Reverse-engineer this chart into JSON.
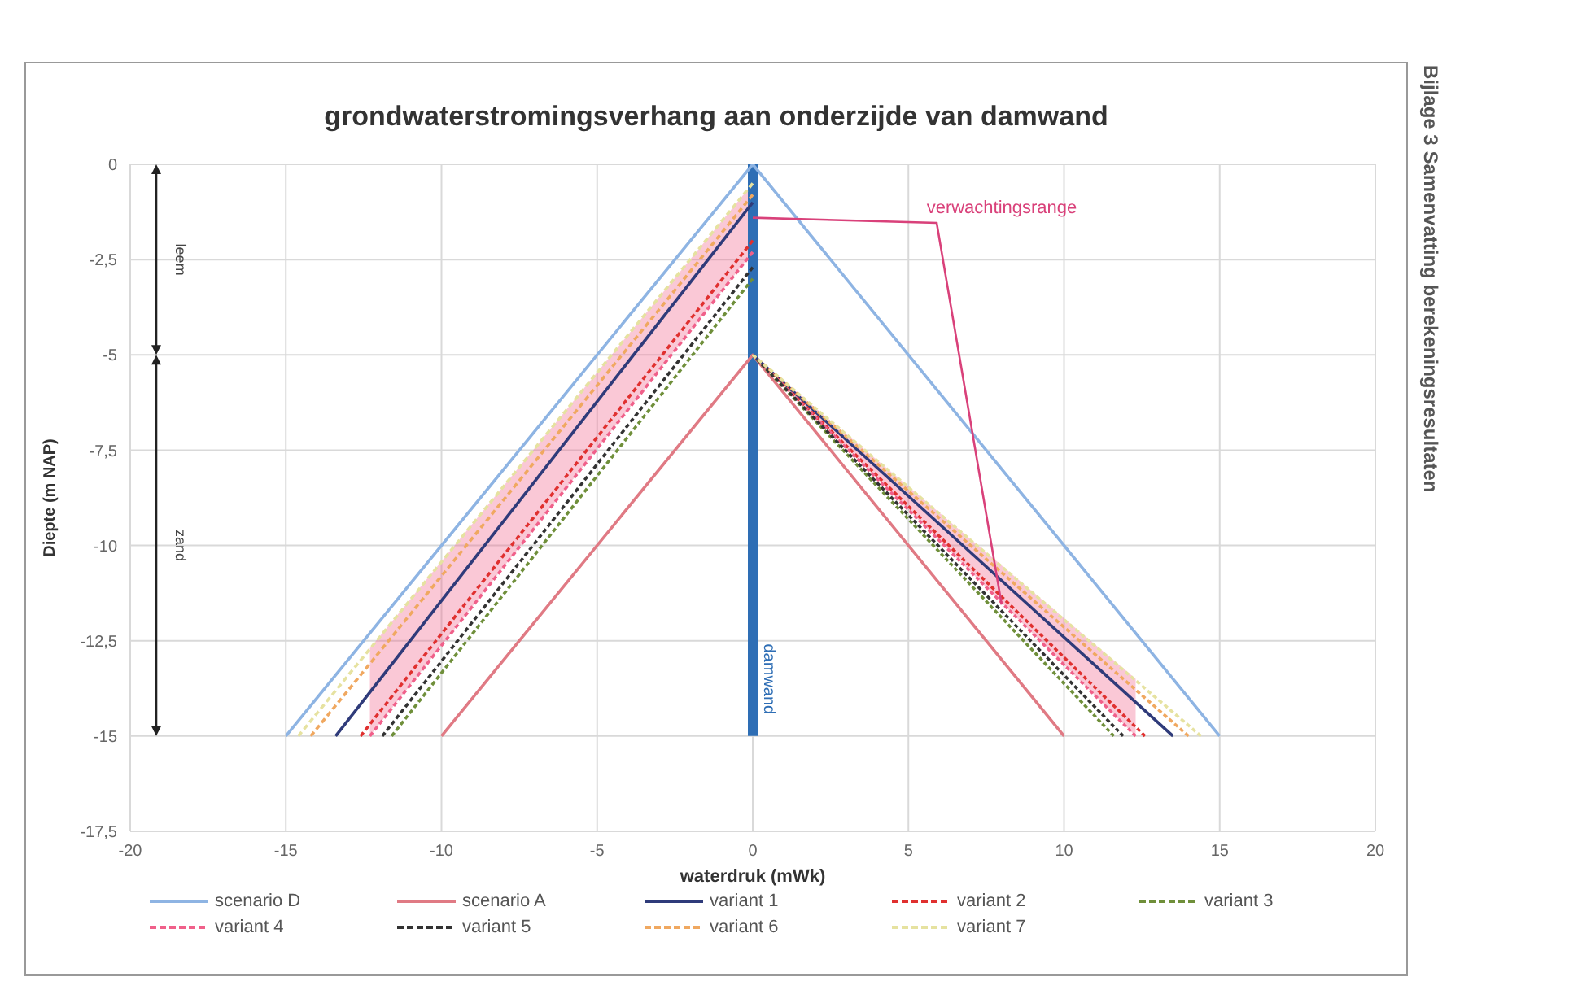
{
  "chart_data": {
    "type": "line",
    "title": "grondwaterstromingsverhang aan onderzijde van damwand",
    "xlabel": "waterdruk (mWk)",
    "ylabel": "Diepte (m NAP)",
    "xlim": [
      -20,
      20
    ],
    "xticks": [
      -20,
      -15,
      -10,
      -5,
      0,
      5,
      10,
      15,
      20
    ],
    "ylim": [
      -17.5,
      0
    ],
    "yticks": [
      0,
      {
        "value": -2.5,
        "label": "-2,5"
      },
      -5,
      {
        "value": -7.5,
        "label": "-7,5"
      },
      -10,
      {
        "value": -12.5,
        "label": "-12,5"
      },
      -15,
      {
        "value": -17.5,
        "label": "-17,5"
      }
    ],
    "grid": true,
    "legend": "bottom",
    "marker": "none",
    "series": [
      {
        "name": "scenario D",
        "color": "#8eb4e3",
        "line_style": "solid",
        "x": [
          -15,
          0,
          15
        ],
        "values": [
          -15,
          0,
          -15
        ]
      },
      {
        "name": "scenario A",
        "color": "#e07a84",
        "line_style": "solid",
        "x": [
          -10,
          0,
          10
        ],
        "values": [
          -15,
          -5,
          -15
        ]
      },
      {
        "name": "variant 1",
        "color": "#2f3b7a",
        "line_style": "solid",
        "x": [
          -13.4,
          0
        ],
        "values": [
          -15,
          -1
        ]
      },
      {
        "color": "#2f3b7a",
        "line_style": "solid",
        "x": [
          0,
          13.5
        ],
        "values": [
          -5,
          -15
        ]
      },
      {
        "name": "variant 2",
        "color": "#e0302f",
        "line_style": "dashed",
        "x": [
          -12.6,
          0
        ],
        "values": [
          -15,
          -2
        ]
      },
      {
        "color": "#e0302f",
        "line_style": "dashed",
        "x": [
          0,
          12.6
        ],
        "values": [
          -5,
          -15
        ]
      },
      {
        "name": "variant 3",
        "color": "#6f8f3a",
        "line_style": "dashed",
        "x": [
          -11.6,
          0
        ],
        "values": [
          -15,
          -3
        ]
      },
      {
        "color": "#6f8f3a",
        "line_style": "dashed",
        "x": [
          0,
          11.6
        ],
        "values": [
          -5,
          -15
        ]
      },
      {
        "name": "variant 4",
        "color": "#f0608a",
        "line_style": "dashed",
        "x": [
          -12.3,
          0
        ],
        "values": [
          -15,
          -2.3
        ],
        "lower": [
          -15,
          -2.3
        ],
        "upper": [
          -12.7,
          -0.5
        ]
      },
      {
        "color": "#f0608a",
        "line_style": "dashed",
        "x": [
          0,
          12.3
        ],
        "values": [
          -5,
          -15
        ],
        "lower": [
          -5,
          -15
        ],
        "upper": [
          -5,
          -13.5
        ]
      },
      {
        "name": "variant 5",
        "color": "#333333",
        "line_style": "dashed",
        "x": [
          -11.9,
          0
        ],
        "values": [
          -15,
          -2.7
        ]
      },
      {
        "color": "#333333",
        "line_style": "dashed",
        "x": [
          0,
          11.9
        ],
        "values": [
          -5,
          -15
        ]
      },
      {
        "name": "variant 6",
        "color": "#f0a860",
        "line_style": "dashed",
        "x": [
          -14.2,
          0
        ],
        "values": [
          -15,
          -0.8
        ]
      },
      {
        "color": "#f0a860",
        "line_style": "dashed",
        "x": [
          0,
          14
        ],
        "values": [
          -5,
          -15
        ]
      },
      {
        "name": "variant 7",
        "color": "#e6e2a0",
        "line_style": "dashed",
        "x": [
          -14.6,
          0
        ],
        "values": [
          -15,
          -0.5
        ]
      },
      {
        "color": "#e6e2a0",
        "line_style": "dashed",
        "x": [
          0,
          14.4
        ],
        "values": [
          -5,
          -15
        ]
      },
      {
        "name": "damwand",
        "color": "#2e6eb5",
        "line_style": "solid",
        "x": [
          0,
          0
        ],
        "values": [
          0,
          -15
        ]
      }
    ],
    "annotations": [
      "verwachtingsrange",
      "leem",
      "zand",
      "Bijlage 3 Samenvatting berekeningsresultaten"
    ]
  }
}
